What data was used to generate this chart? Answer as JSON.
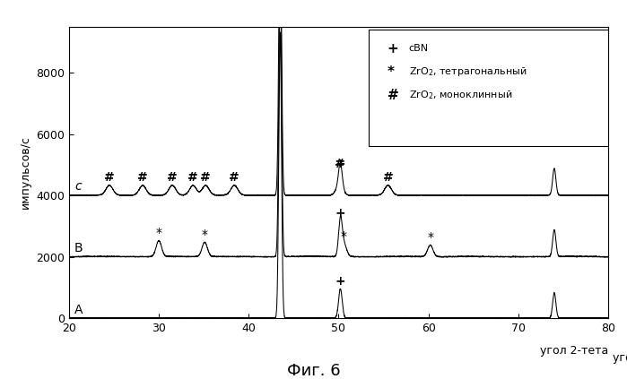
{
  "title": "Фиг. 6",
  "ylabel": "импульсов/с",
  "xlabel": "угол 2-тета",
  "xlim": [
    20,
    80
  ],
  "ylim": [
    0,
    9500
  ],
  "yticks": [
    0,
    2000,
    4000,
    6000,
    8000
  ],
  "xticks": [
    20,
    30,
    40,
    50,
    60,
    70,
    80
  ],
  "offsets": {
    "A": 0,
    "B": 2000,
    "C": 4000
  },
  "legend_label1": "cBN",
  "legend_label2": "ZrO$_2$, тетрагональный",
  "legend_label3": "ZrO$_2$, моноклинный",
  "figsize": [
    6.99,
    4.23
  ],
  "dpi": 100
}
